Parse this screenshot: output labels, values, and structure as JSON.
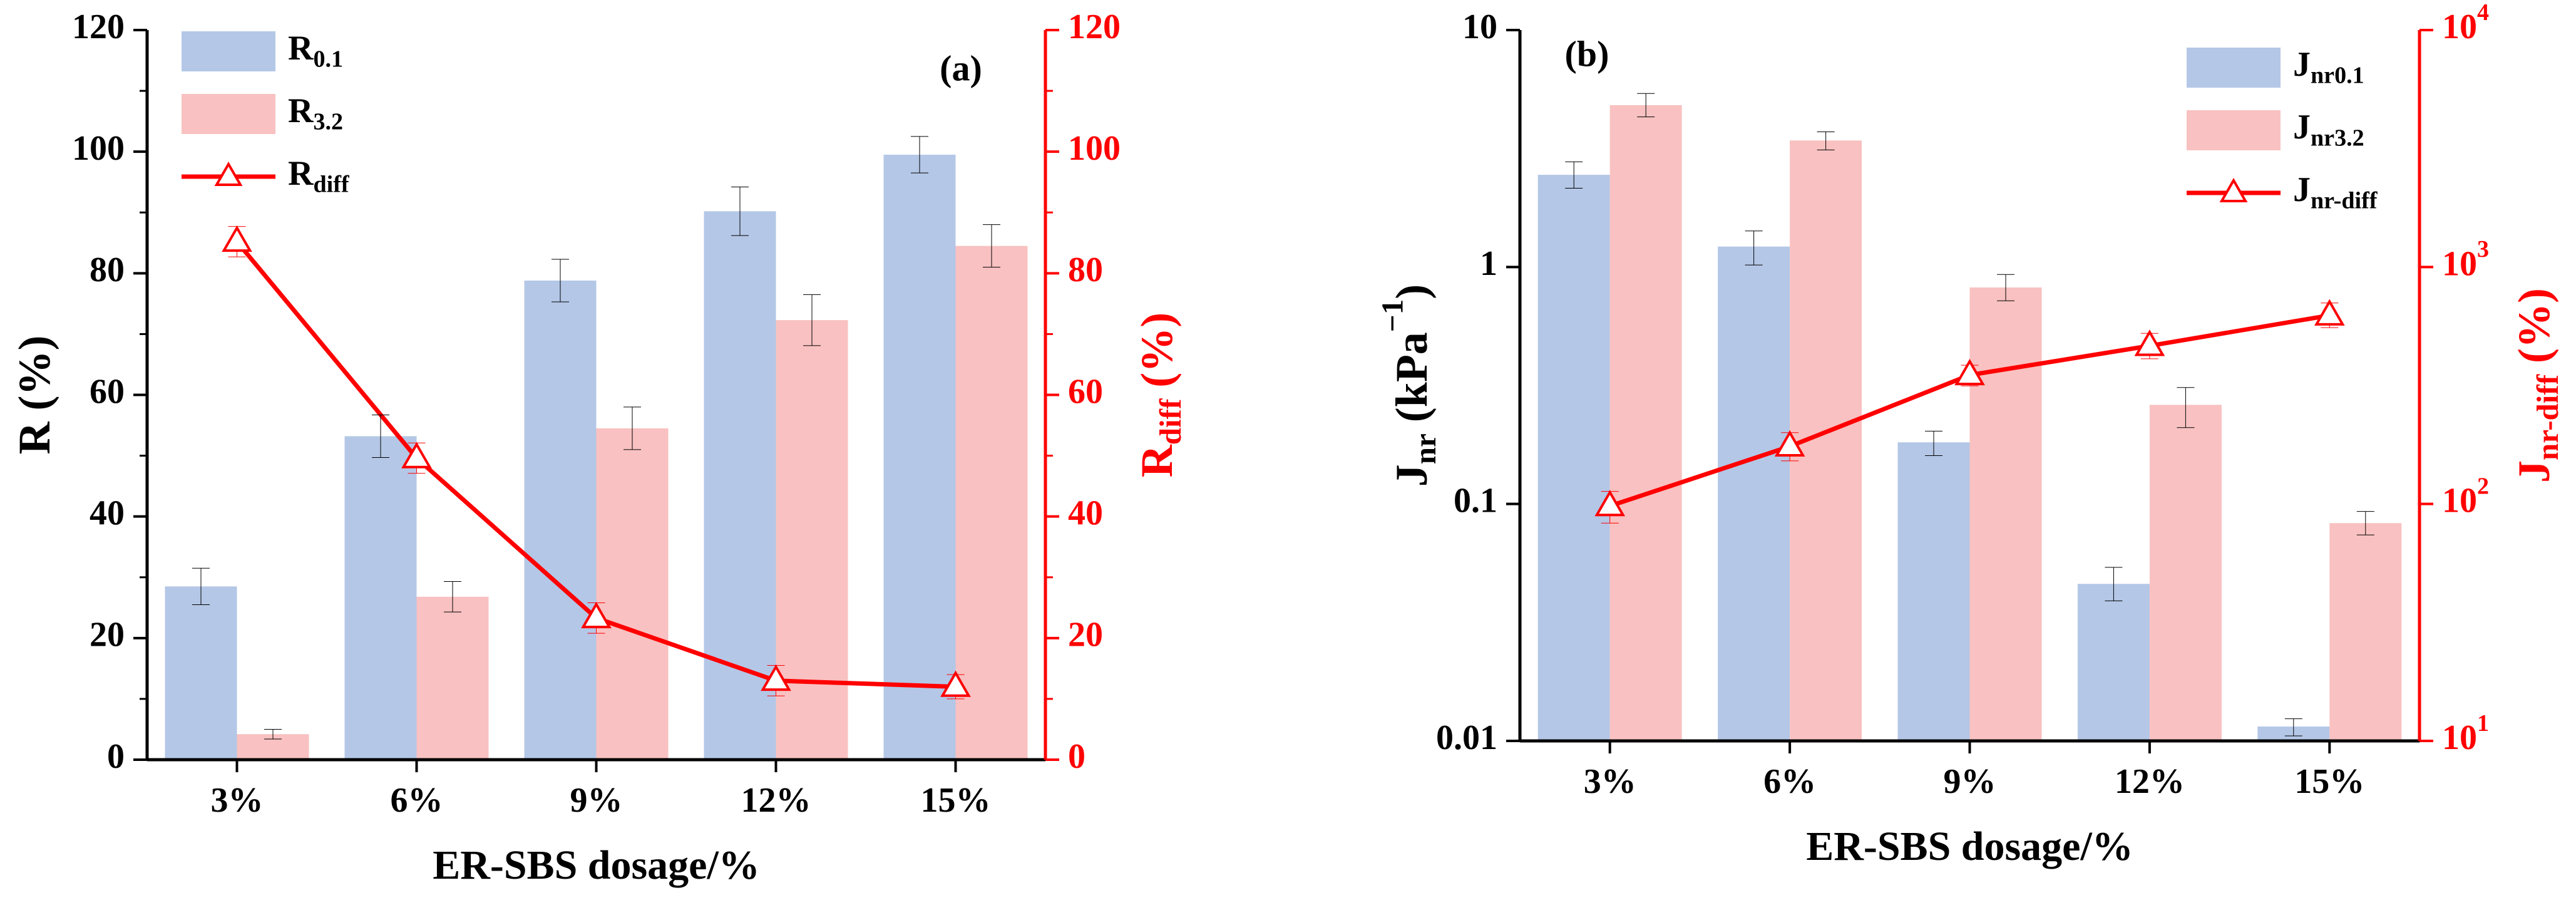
{
  "colors": {
    "bar_a": "#b4c7e7",
    "bar_b": "#f9c1c1",
    "line": "#ff0000",
    "axis_left": "#000000",
    "axis_right": "#ff0000"
  },
  "chart_data": [
    {
      "panel_label": "(a)",
      "type": "bar",
      "categories": [
        "3%",
        "6%",
        "9%",
        "12%",
        "15%"
      ],
      "xlabel": "ER-SBS dosage/%",
      "ylabel": {
        "base": "R",
        "rest": " (%)"
      },
      "y2label": {
        "base": "R",
        "sub": "diff",
        "rest": " (%)"
      },
      "ylim": [
        0,
        120
      ],
      "y2lim": [
        0,
        120
      ],
      "yticks": [
        0,
        20,
        40,
        60,
        80,
        100,
        120
      ],
      "y2ticks": [
        0,
        20,
        40,
        60,
        80,
        100,
        120
      ],
      "series": [
        {
          "name": "R0.1",
          "label_base": "R",
          "label_sub": "0.1",
          "values": [
            28.5,
            53.2,
            78.8,
            90.2,
            99.5
          ],
          "errors": [
            3.0,
            3.5,
            3.5,
            4.0,
            3.0
          ]
        },
        {
          "name": "R3.2",
          "label_base": "R",
          "label_sub": "3.2",
          "values": [
            4.2,
            26.8,
            54.5,
            72.3,
            84.5
          ],
          "errors": [
            0.8,
            2.5,
            3.5,
            4.2,
            3.5
          ]
        }
      ],
      "line_series": {
        "name": "Rdiff",
        "label_base": "R",
        "label_sub": "diff",
        "axis": "right",
        "values": [
          85.2,
          49.6,
          23.3,
          13.0,
          12.0
        ],
        "errors": [
          2.5,
          2.5,
          2.5,
          2.5,
          2.0
        ]
      }
    },
    {
      "panel_label": "(b)",
      "type": "bar",
      "categories": [
        "3%",
        "6%",
        "9%",
        "12%",
        "15%"
      ],
      "xlabel": "ER-SBS dosage/%",
      "ylabel": {
        "base": "J",
        "sub": "nr",
        "rest": " (kPa",
        "sup": "−1",
        "rest2": ")"
      },
      "y2label": {
        "base": "J",
        "sub": "nr-diff",
        "rest": " (%)"
      },
      "yscale": "log",
      "y2scale": "log",
      "ylim": [
        0.01,
        10
      ],
      "y2lim": [
        10,
        10000
      ],
      "yticks": [
        "0.01",
        "0.1",
        "1",
        "10"
      ],
      "y2ticks": [
        {
          "base": "10",
          "exp": "1"
        },
        {
          "base": "10",
          "exp": "2"
        },
        {
          "base": "10",
          "exp": "3"
        },
        {
          "base": "10",
          "exp": "4"
        }
      ],
      "series": [
        {
          "name": "Jnr0.1",
          "label_base": "J",
          "label_sub": "nr0.1",
          "values": [
            2.45,
            1.22,
            0.182,
            0.046,
            0.0115
          ],
          "err_low": [
            2.15,
            1.02,
            0.16,
            0.039,
            0.0105
          ],
          "err_high": [
            2.78,
            1.42,
            0.203,
            0.054,
            0.0124
          ]
        },
        {
          "name": "Jnr3.2",
          "label_base": "J",
          "label_sub": "nr3.2",
          "values": [
            4.82,
            3.42,
            0.82,
            0.262,
            0.083
          ],
          "err_low": [
            4.3,
            3.12,
            0.72,
            0.21,
            0.074
          ],
          "err_high": [
            5.4,
            3.72,
            0.93,
            0.31,
            0.093
          ]
        }
      ],
      "line_series": {
        "name": "Jnr-diff",
        "label_base": "J",
        "label_sub": "nr-diff",
        "axis": "right",
        "values": [
          98,
          175,
          350,
          465,
          625
        ],
        "err_low": [
          83,
          152,
          315,
          410,
          555
        ],
        "err_high": [
          113,
          200,
          385,
          525,
          705
        ]
      }
    }
  ]
}
